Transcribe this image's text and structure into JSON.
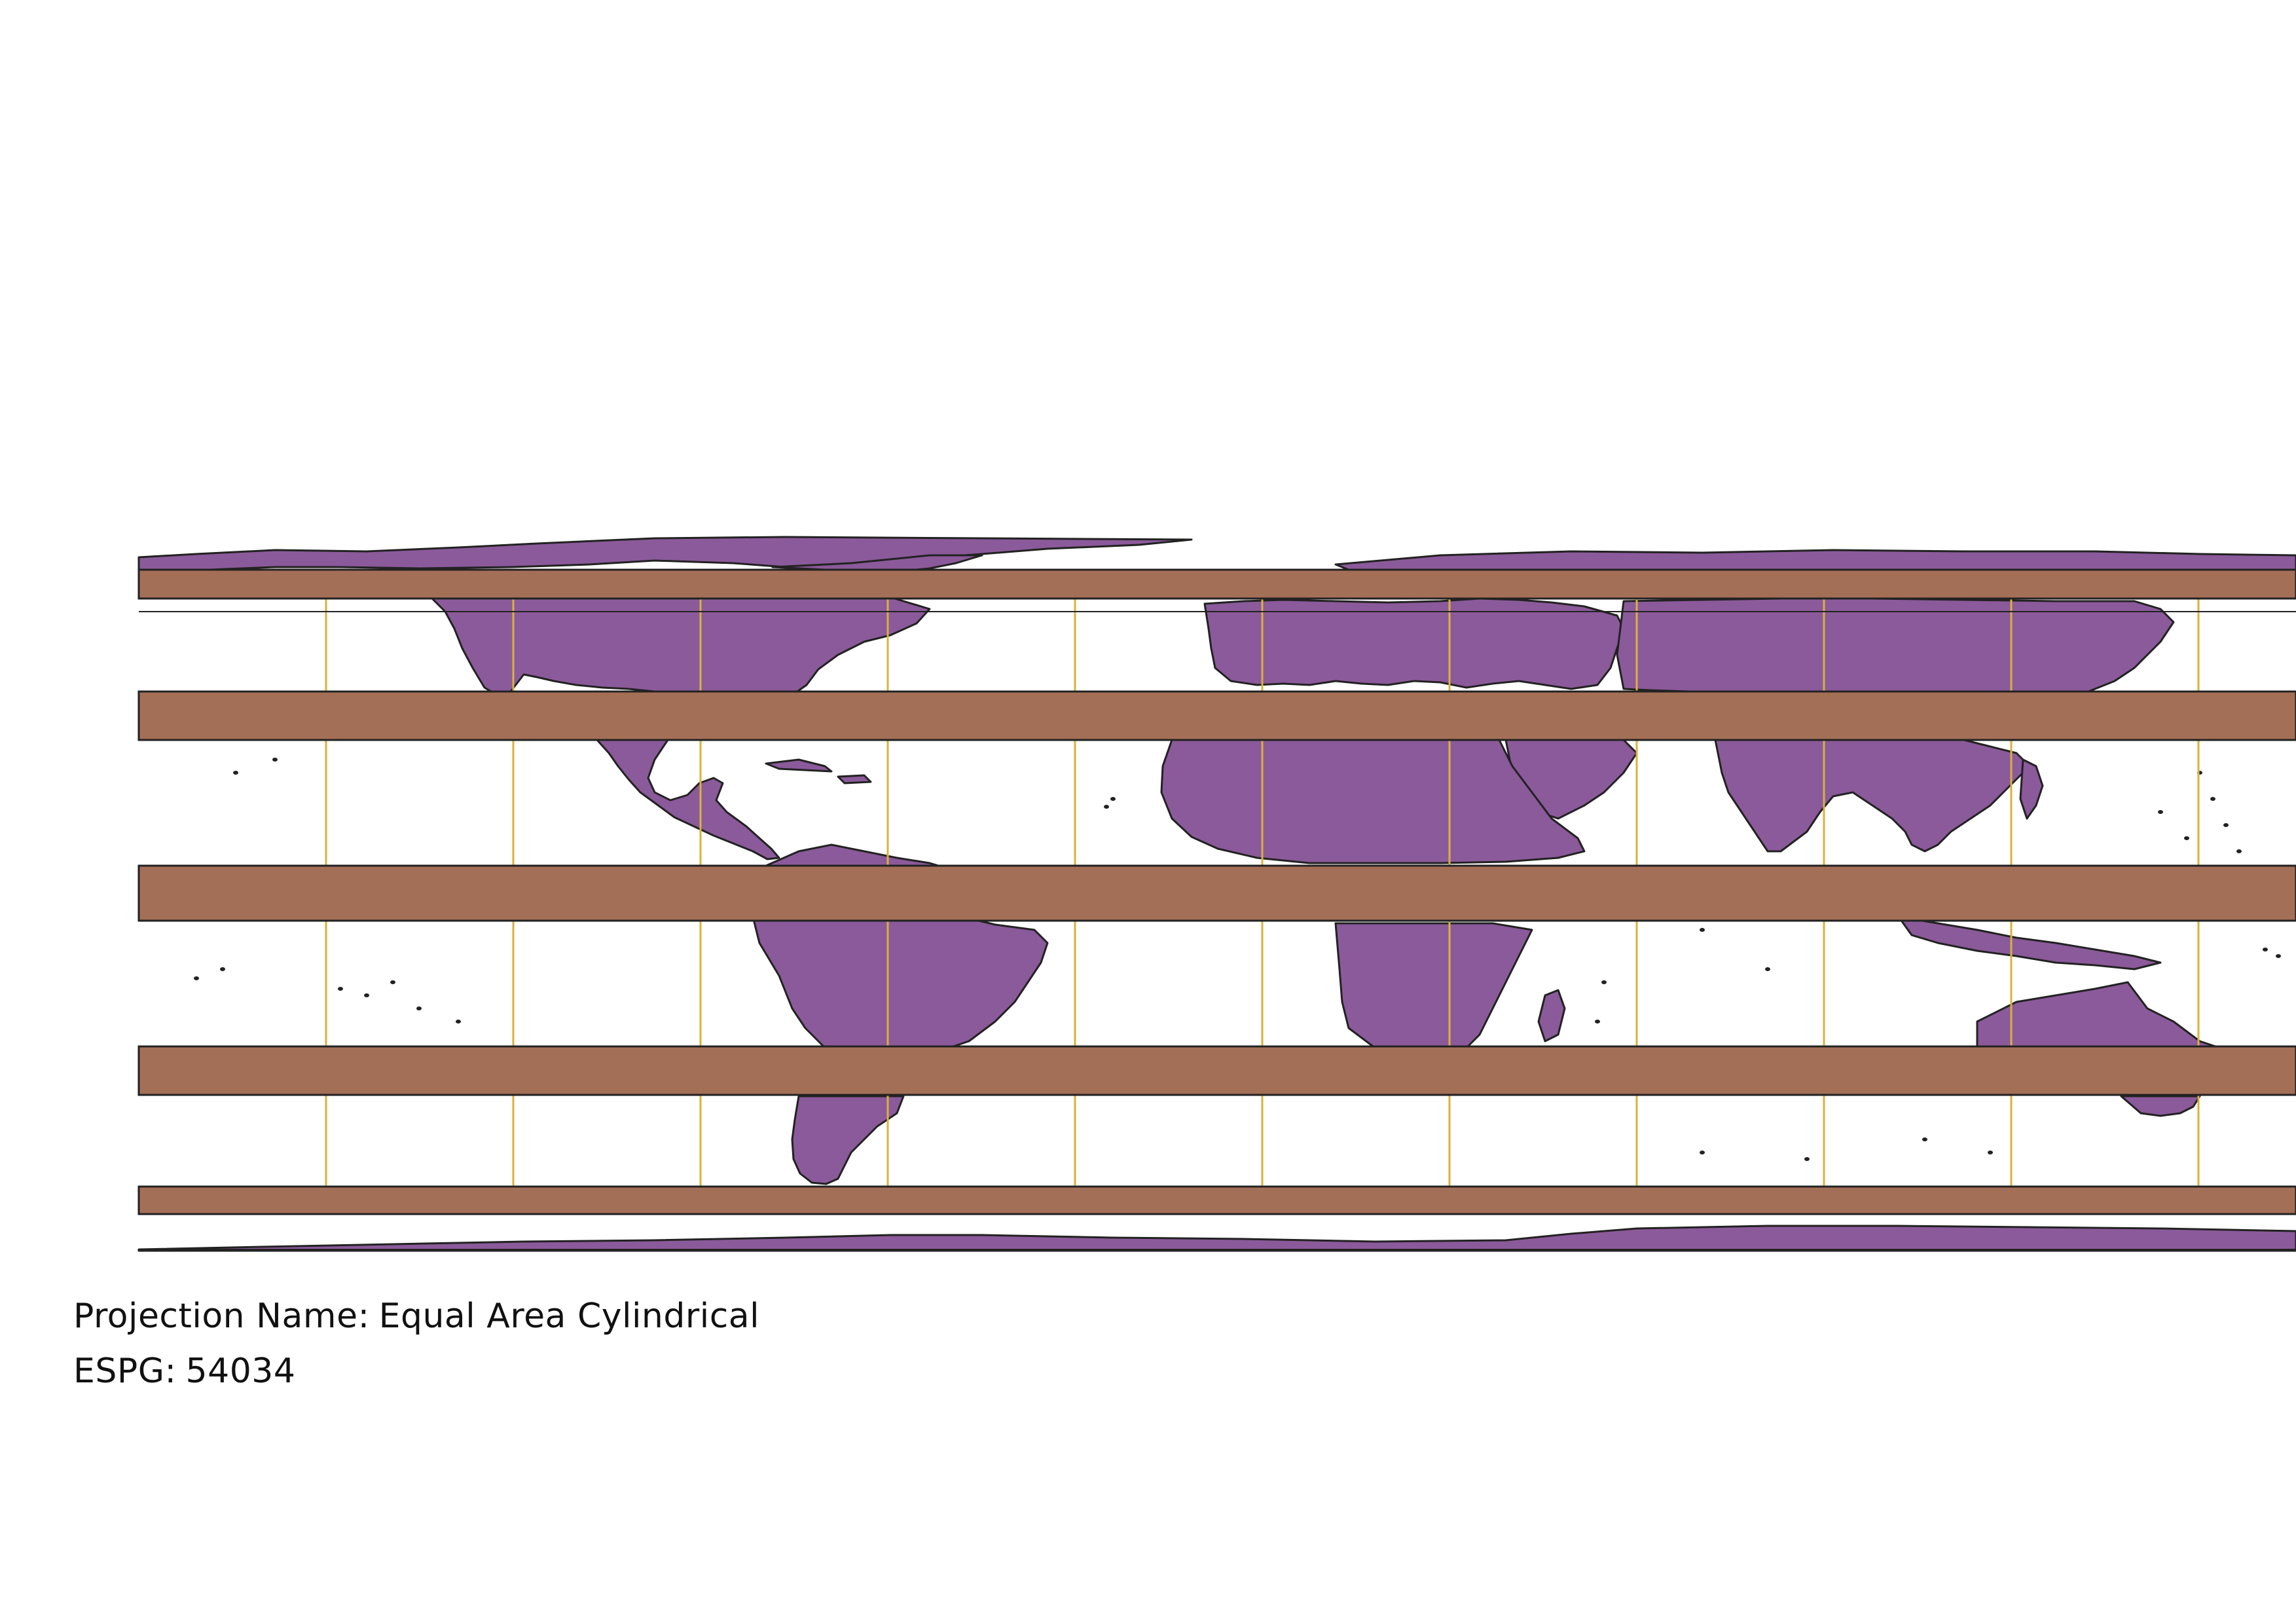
{
  "map": {
    "colors": {
      "land_fill": "#8b5a9a",
      "land_stroke": "#222222",
      "band_fill": "#a46f57",
      "band_stroke": "#222222",
      "meridian_stroke": "#d8b23a",
      "background": "#ffffff"
    },
    "layers": [
      "country-polygons",
      "latitude-band-polygons",
      "meridian-lines"
    ]
  },
  "labels": {
    "projection_key": "Projection Name:",
    "projection_value": "Equal Area Cylindrical",
    "epsg_key": "ESPG:",
    "epsg_value": "54034"
  }
}
